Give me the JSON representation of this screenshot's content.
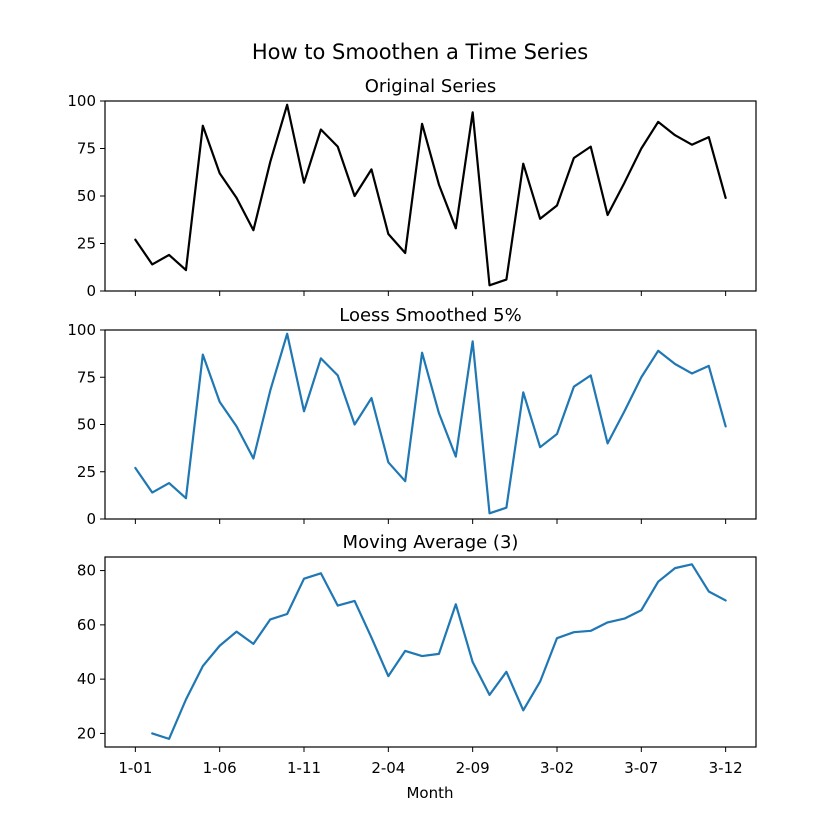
{
  "figure": {
    "title": "How to Smoothen a Time Series",
    "xlabel": "Month"
  },
  "chart_data": [
    {
      "type": "line",
      "title": "Original Series",
      "color": "#000000",
      "ylim": [
        0,
        100
      ],
      "yticks": [
        0,
        25,
        50,
        75,
        100
      ],
      "x_start": 1,
      "values": [
        27,
        14,
        19,
        11,
        87,
        62,
        49,
        32,
        68,
        98,
        57,
        85,
        76,
        50,
        64,
        30,
        20,
        88,
        56,
        33,
        94,
        3,
        6,
        67,
        38,
        45,
        70,
        76,
        40,
        57,
        75,
        89,
        82,
        77,
        81,
        49
      ]
    },
    {
      "type": "line",
      "title": "Loess Smoothed 5%",
      "color": "#1f77b4",
      "ylim": [
        0,
        100
      ],
      "yticks": [
        0,
        25,
        50,
        75,
        100
      ],
      "x_start": 1,
      "values": [
        27,
        14,
        19,
        11,
        87,
        62,
        49,
        32,
        68,
        98,
        57,
        85,
        76,
        50,
        64,
        30,
        20,
        88,
        56,
        33,
        94,
        3,
        6,
        67,
        38,
        45,
        70,
        76,
        40,
        57,
        75,
        89,
        82,
        77,
        81,
        49
      ]
    },
    {
      "type": "line",
      "title": "Moving Average (3)",
      "color": "#1f77b4",
      "ylim": [
        15,
        85
      ],
      "yticks": [
        20,
        40,
        60,
        80
      ],
      "x_start": 2,
      "values": [
        20,
        18,
        32.5,
        44.8,
        52.3,
        57.5,
        53,
        62,
        64,
        77,
        79,
        67.1,
        68.8,
        55.3,
        41.1,
        50.4,
        48.5,
        49.3,
        67.6,
        46.3,
        34.2,
        42.7,
        28.5,
        39.1,
        55.1,
        57.3,
        57.8,
        60.9,
        62.3,
        65.4,
        75.9,
        80.9,
        82.3,
        72.3,
        69
      ]
    }
  ],
  "x_axis": {
    "ticks": [
      {
        "x": 1,
        "label": "1-01"
      },
      {
        "x": 6,
        "label": "1-06"
      },
      {
        "x": 11,
        "label": "1-11"
      },
      {
        "x": 16,
        "label": "2-04"
      },
      {
        "x": 21,
        "label": "2-09"
      },
      {
        "x": 26,
        "label": "3-02"
      },
      {
        "x": 31,
        "label": "3-07"
      },
      {
        "x": 36,
        "label": "3-12"
      }
    ],
    "xlim": [
      -0.8,
      37.8
    ]
  }
}
